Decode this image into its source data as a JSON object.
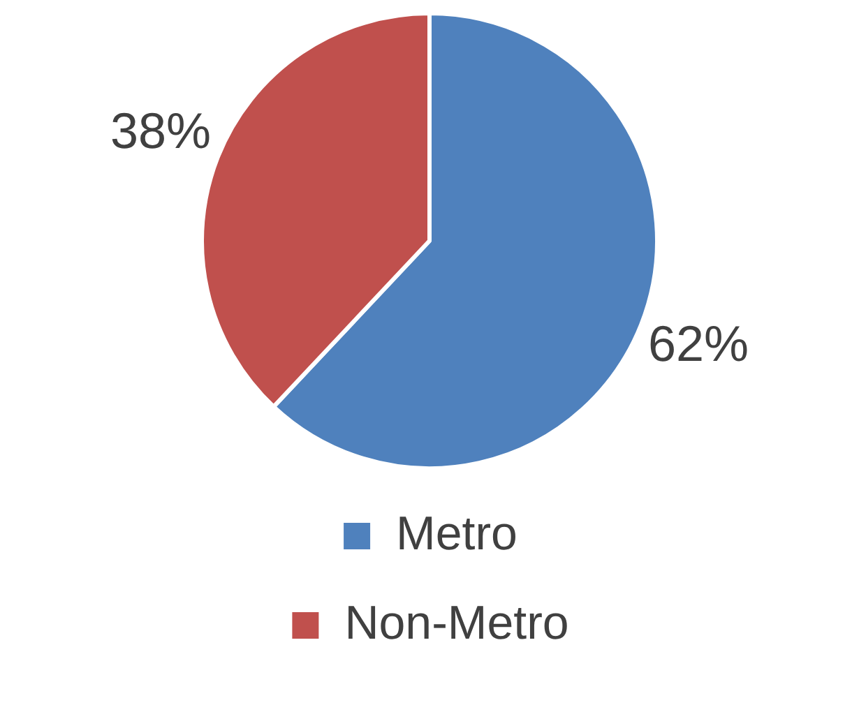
{
  "chart_data": {
    "type": "pie",
    "categories": [
      "Metro",
      "Non-Metro"
    ],
    "values": [
      62,
      38
    ],
    "colors": [
      "#4f81bd",
      "#c0504d"
    ],
    "value_labels": [
      "62%",
      "38%"
    ],
    "legend": "bottom"
  }
}
